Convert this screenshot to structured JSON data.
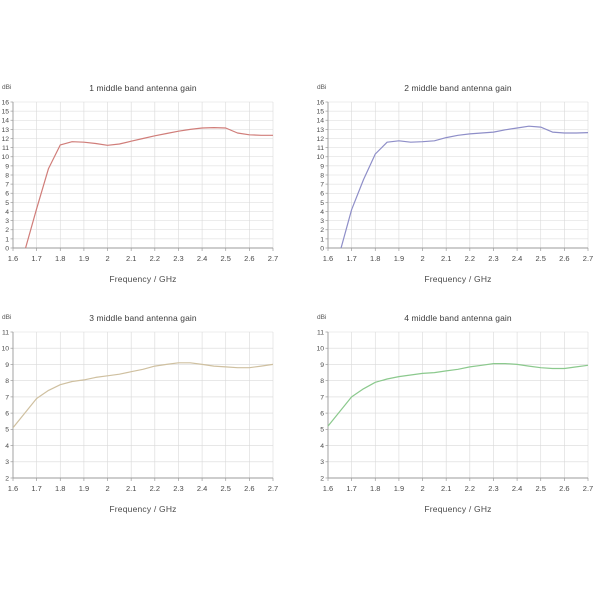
{
  "style": {
    "grid_color": "#d9d9d9",
    "axis_color": "#9b9b9b",
    "tick_text_color": "#4a4a4a",
    "title_color": "#3d3d3d",
    "background": "#ffffff"
  },
  "chart_data": [
    {
      "type": "line",
      "title": "1 middle band antenna gain",
      "ylabel": "dBi",
      "xlabel": "Frequency / GHz",
      "color": "#d07d79",
      "xlim": [
        1.6,
        2.7
      ],
      "ylim": [
        0,
        16
      ],
      "grid": true,
      "legend": "none",
      "xticks": [
        1.6,
        1.7,
        1.8,
        1.9,
        2,
        2.1,
        2.2,
        2.3,
        2.4,
        2.5,
        2.6,
        2.7
      ],
      "xtick_labels": [
        "1.6",
        "1.7",
        "1.8",
        "1.9",
        "2",
        "2.1",
        "2.2",
        "2.3",
        "2.4",
        "2.5",
        "2.6",
        "2.7"
      ],
      "yticks": [
        0,
        1,
        2,
        3,
        4,
        5,
        6,
        7,
        8,
        9,
        10,
        11,
        12,
        13,
        14,
        15,
        16
      ],
      "ytick_labels": [
        "0",
        "1",
        "2",
        "3",
        "4",
        "5",
        "6",
        "7",
        "8",
        "9",
        "10",
        "11",
        "12",
        "13",
        "14",
        "15",
        "16"
      ],
      "x": [
        1.6,
        1.65,
        1.7,
        1.75,
        1.8,
        1.85,
        1.9,
        1.95,
        2.0,
        2.05,
        2.1,
        2.15,
        2.2,
        2.25,
        2.3,
        2.35,
        2.4,
        2.45,
        2.5,
        2.55,
        2.6,
        2.65,
        2.7
      ],
      "y": [
        -2.5,
        -0.3,
        4.3,
        8.7,
        11.3,
        11.65,
        11.6,
        11.45,
        11.25,
        11.4,
        11.7,
        12.0,
        12.3,
        12.55,
        12.8,
        13.0,
        13.15,
        13.2,
        13.15,
        12.6,
        12.4,
        12.35,
        12.35
      ]
    },
    {
      "type": "line",
      "title": "2 middle band antenna gain",
      "ylabel": "dBi",
      "xlabel": "Frequency / GHz",
      "color": "#8e8ec8",
      "xlim": [
        1.6,
        2.7
      ],
      "ylim": [
        0,
        16
      ],
      "grid": true,
      "legend": "none",
      "xticks": [
        1.6,
        1.7,
        1.8,
        1.9,
        2,
        2.1,
        2.2,
        2.3,
        2.4,
        2.5,
        2.6,
        2.7
      ],
      "xtick_labels": [
        "1.6",
        "1.7",
        "1.8",
        "1.9",
        "2",
        "2.1",
        "2.2",
        "2.3",
        "2.4",
        "2.5",
        "2.6",
        "2.7"
      ],
      "yticks": [
        0,
        1,
        2,
        3,
        4,
        5,
        6,
        7,
        8,
        9,
        10,
        11,
        12,
        13,
        14,
        15,
        16
      ],
      "ytick_labels": [
        "0",
        "1",
        "2",
        "3",
        "4",
        "5",
        "6",
        "7",
        "8",
        "9",
        "10",
        "11",
        "12",
        "13",
        "14",
        "15",
        "16"
      ],
      "x": [
        1.6,
        1.65,
        1.7,
        1.75,
        1.8,
        1.85,
        1.9,
        1.95,
        2.0,
        2.05,
        2.1,
        2.15,
        2.2,
        2.25,
        2.3,
        2.35,
        2.4,
        2.45,
        2.5,
        2.55,
        2.6,
        2.65,
        2.7
      ],
      "y": [
        -3.0,
        -0.5,
        4.2,
        7.5,
        10.3,
        11.6,
        11.75,
        11.6,
        11.65,
        11.75,
        12.1,
        12.35,
        12.5,
        12.6,
        12.7,
        12.95,
        13.15,
        13.35,
        13.25,
        12.7,
        12.6,
        12.6,
        12.65
      ]
    },
    {
      "type": "line",
      "title": "3 middle band antenna gain",
      "ylabel": "dBi",
      "xlabel": "Frequency / GHz",
      "color": "#cfc0a0",
      "xlim": [
        1.6,
        2.7
      ],
      "ylim": [
        2,
        11
      ],
      "grid": true,
      "legend": "none",
      "xticks": [
        1.6,
        1.7,
        1.8,
        1.9,
        2,
        2.1,
        2.2,
        2.3,
        2.4,
        2.5,
        2.6,
        2.7
      ],
      "xtick_labels": [
        "1.6",
        "1.7",
        "1.8",
        "1.9",
        "2",
        "2.1",
        "2.2",
        "2.3",
        "2.4",
        "2.5",
        "2.6",
        "2.7"
      ],
      "yticks": [
        2,
        3,
        4,
        5,
        6,
        7,
        8,
        9,
        10,
        11
      ],
      "ytick_labels": [
        "2",
        "3",
        "4",
        "5",
        "6",
        "7",
        "8",
        "9",
        "10",
        "11"
      ],
      "x": [
        1.6,
        1.65,
        1.7,
        1.75,
        1.8,
        1.85,
        1.9,
        1.95,
        2.0,
        2.05,
        2.1,
        2.15,
        2.2,
        2.25,
        2.3,
        2.35,
        2.4,
        2.45,
        2.5,
        2.55,
        2.6,
        2.65,
        2.7
      ],
      "y": [
        5.1,
        6.0,
        6.9,
        7.4,
        7.75,
        7.95,
        8.05,
        8.2,
        8.3,
        8.4,
        8.55,
        8.7,
        8.9,
        9.0,
        9.1,
        9.1,
        9.0,
        8.9,
        8.85,
        8.8,
        8.8,
        8.9,
        9.0
      ]
    },
    {
      "type": "line",
      "title": "4 middle band antenna gain",
      "ylabel": "dBi",
      "xlabel": "Frequency / GHz",
      "color": "#8bc98d",
      "xlim": [
        1.6,
        2.7
      ],
      "ylim": [
        2,
        11
      ],
      "grid": true,
      "legend": "none",
      "xticks": [
        1.6,
        1.7,
        1.8,
        1.9,
        2,
        2.1,
        2.2,
        2.3,
        2.4,
        2.5,
        2.6,
        2.7
      ],
      "xtick_labels": [
        "1.6",
        "1.7",
        "1.8",
        "1.9",
        "2",
        "2.1",
        "2.2",
        "2.3",
        "2.4",
        "2.5",
        "2.6",
        "2.7"
      ],
      "yticks": [
        2,
        3,
        4,
        5,
        6,
        7,
        8,
        9,
        10,
        11
      ],
      "ytick_labels": [
        "2",
        "3",
        "4",
        "5",
        "6",
        "7",
        "8",
        "9",
        "10",
        "11"
      ],
      "x": [
        1.6,
        1.65,
        1.7,
        1.75,
        1.8,
        1.85,
        1.9,
        1.95,
        2.0,
        2.05,
        2.1,
        2.15,
        2.2,
        2.25,
        2.3,
        2.35,
        2.4,
        2.45,
        2.5,
        2.55,
        2.6,
        2.65,
        2.7
      ],
      "y": [
        5.2,
        6.1,
        7.0,
        7.5,
        7.9,
        8.1,
        8.25,
        8.35,
        8.45,
        8.5,
        8.6,
        8.7,
        8.85,
        8.95,
        9.05,
        9.05,
        9.0,
        8.9,
        8.8,
        8.75,
        8.75,
        8.85,
        8.95
      ]
    }
  ]
}
